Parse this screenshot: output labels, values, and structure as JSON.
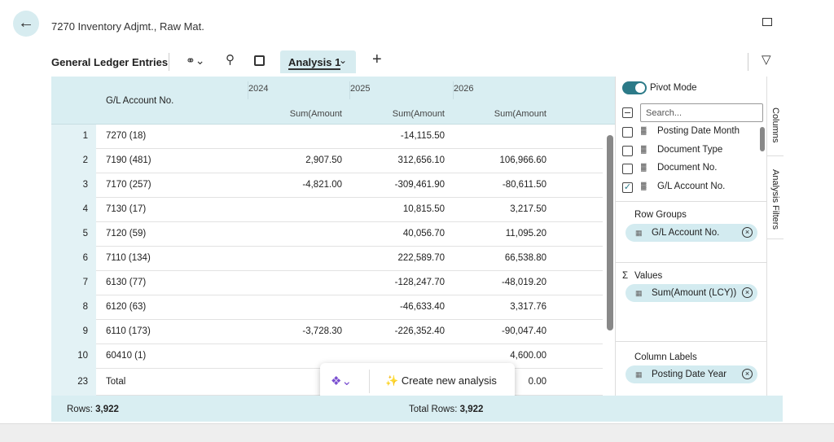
{
  "header": {
    "title": "7270 Inventory Adjmt., Raw Mat."
  },
  "toolbar": {
    "page_name": "General Ledger Entries",
    "tab": "Analysis 1"
  },
  "table": {
    "column_header": "G/L Account No.",
    "years": [
      "2024",
      "2025",
      "2026"
    ],
    "measures": [
      "Sum(Amount",
      "Sum(Amount",
      "Sum(Amount"
    ],
    "rows": [
      [
        "1",
        "7270 (18)",
        null,
        "-14,115.50",
        null
      ],
      [
        "2",
        "7190 (481)",
        "2,907.50",
        "312,656.10",
        "106,966.60"
      ],
      [
        "3",
        "7170 (257)",
        "-4,821.00",
        "-309,461.90",
        "-80,611.50"
      ],
      [
        "4",
        "7130 (17)",
        null,
        "10,815.50",
        "3,217.50"
      ],
      [
        "5",
        "7120 (59)",
        null,
        "40,056.70",
        "11,095.20"
      ],
      [
        "6",
        "7110 (134)",
        null,
        "222,589.70",
        "66,538.80"
      ],
      [
        "7",
        "6130 (77)",
        null,
        "-128,247.70",
        "-48,019.20"
      ],
      [
        "8",
        "6120 (63)",
        null,
        "-46,633.40",
        "3,317.76"
      ],
      [
        "9",
        "6110 (173)",
        "-3,728.30",
        "-226,352.40",
        "-90,047.40"
      ],
      [
        "10",
        "60410 (1)",
        null,
        null,
        "4,600.00"
      ]
    ],
    "total_row": [
      "23",
      "Total",
      null,
      null,
      "0.00"
    ]
  },
  "popup": {
    "action": "Create new analysis"
  },
  "footer": {
    "rows_label": "Rows:",
    "rows_value": "3,922",
    "total_label": "Total Rows:",
    "total_value": "3,922"
  },
  "panel": {
    "pivot_mode": "Pivot Mode",
    "search_placeholder": "Search...",
    "fields": [
      {
        "label": "Posting Date Month",
        "checked": false
      },
      {
        "label": "Document Type",
        "checked": false
      },
      {
        "label": "Document No.",
        "checked": false
      },
      {
        "label": "G/L Account No.",
        "checked": true
      }
    ],
    "row_groups": {
      "title": "Row Groups",
      "chip": "G/L Account No."
    },
    "values": {
      "title": "Values",
      "chip": "Sum(Amount (LCY))"
    },
    "column_labels": {
      "title": "Column Labels",
      "chip": "Posting Date Year"
    },
    "side_tabs": [
      "Columns",
      "Analysis Filters"
    ]
  }
}
